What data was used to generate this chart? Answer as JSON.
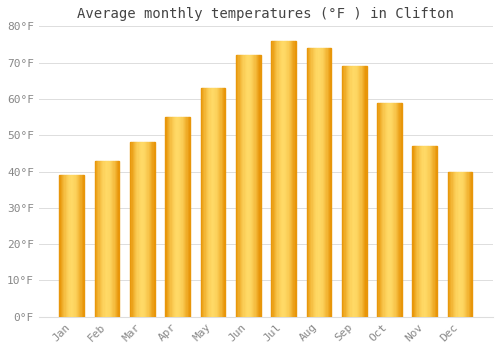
{
  "title": "Average monthly temperatures (°F ) in Clifton",
  "months": [
    "Jan",
    "Feb",
    "Mar",
    "Apr",
    "May",
    "Jun",
    "Jul",
    "Aug",
    "Sep",
    "Oct",
    "Nov",
    "Dec"
  ],
  "values": [
    39,
    43,
    48,
    55,
    63,
    72,
    76,
    74,
    69,
    59,
    47,
    40
  ],
  "bar_color_main": "#FDB813",
  "bar_color_light": "#FFD966",
  "bar_color_dark": "#E8960A",
  "ylim": [
    0,
    80
  ],
  "yticks": [
    0,
    10,
    20,
    30,
    40,
    50,
    60,
    70,
    80
  ],
  "ytick_labels": [
    "0°F",
    "10°F",
    "20°F",
    "30°F",
    "40°F",
    "50°F",
    "60°F",
    "70°F",
    "80°F"
  ],
  "background_color": "#FFFFFF",
  "grid_color": "#DDDDDD",
  "title_fontsize": 10,
  "tick_fontsize": 8,
  "tick_color": "#888888",
  "title_color": "#444444",
  "bar_width": 0.7
}
